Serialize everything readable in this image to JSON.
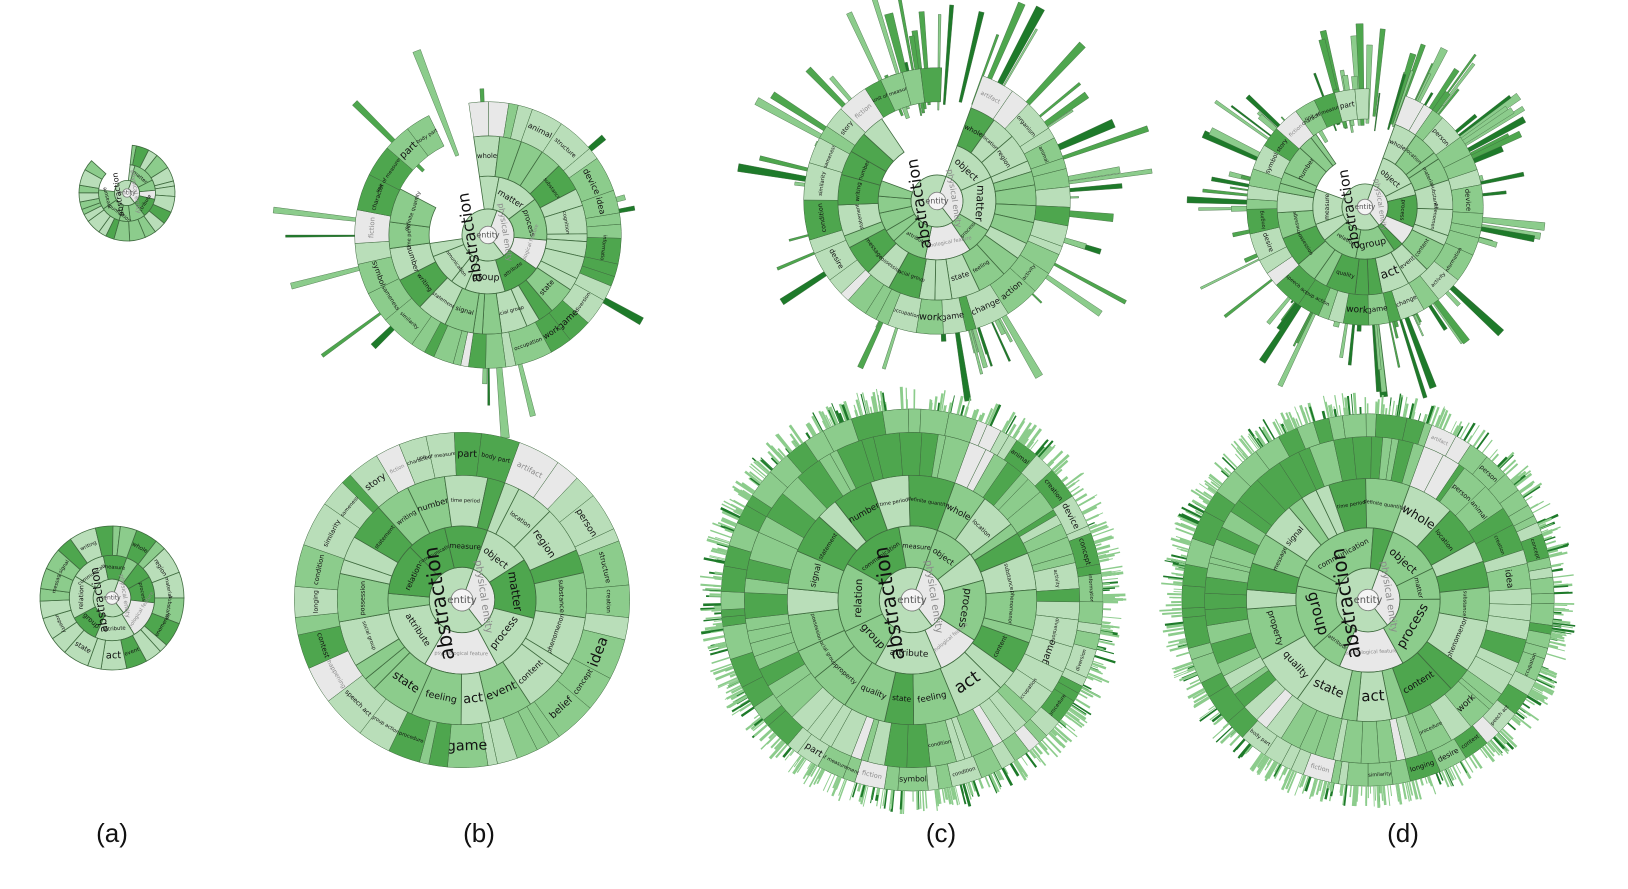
{
  "captions": [
    "(a)",
    "(b)",
    "(c)",
    "(d)"
  ],
  "colors": {
    "green_light": "#b9deb9",
    "green_mid": "#8ccc8c",
    "green_dark": "#4ea64e",
    "green_deep": "#1e7a2a",
    "gray": "#e8e8e8",
    "stroke": "#3f6b3f"
  },
  "labels": {
    "root": "entity",
    "l1": [
      {
        "text": "physical entity",
        "muted": true
      },
      {
        "text": "abstraction",
        "muted": false
      }
    ],
    "l2": [
      {
        "text": "object",
        "muted": false
      },
      {
        "text": "matter",
        "muted": false
      },
      {
        "text": "process",
        "muted": false
      },
      {
        "text": "psychological feature",
        "muted": true
      },
      {
        "text": "attribute",
        "muted": false
      },
      {
        "text": "group",
        "muted": false
      },
      {
        "text": "relation",
        "muted": false
      },
      {
        "text": "communication",
        "muted": false
      },
      {
        "text": "measure",
        "muted": false
      }
    ],
    "l3": [
      {
        "text": "whole",
        "muted": false
      },
      {
        "text": "location",
        "muted": false
      },
      {
        "text": "region",
        "muted": false
      },
      {
        "text": "material",
        "muted": false
      },
      {
        "text": "substance",
        "muted": false
      },
      {
        "text": "phenomenon",
        "muted": false
      },
      {
        "text": "cognition",
        "muted": false
      },
      {
        "text": "content",
        "muted": false
      },
      {
        "text": "event",
        "muted": false
      },
      {
        "text": "act",
        "muted": false
      },
      {
        "text": "feeling",
        "muted": false
      },
      {
        "text": "state",
        "muted": false
      },
      {
        "text": "quality",
        "muted": false
      },
      {
        "text": "property",
        "muted": false
      },
      {
        "text": "social group",
        "muted": false
      },
      {
        "text": "possession",
        "muted": false
      },
      {
        "text": "message",
        "muted": false
      },
      {
        "text": "signal",
        "muted": false
      },
      {
        "text": "statement",
        "muted": false
      },
      {
        "text": "writing",
        "muted": false
      },
      {
        "text": "number",
        "muted": false
      },
      {
        "text": "time period",
        "muted": false
      },
      {
        "text": "definite quantity",
        "muted": false
      }
    ],
    "l4": [
      {
        "text": "artifact",
        "muted": true
      },
      {
        "text": "living thing",
        "muted": true
      },
      {
        "text": "organism",
        "muted": false
      },
      {
        "text": "person",
        "muted": false
      },
      {
        "text": "animal",
        "muted": false
      },
      {
        "text": "structure",
        "muted": false
      },
      {
        "text": "creation",
        "muted": false
      },
      {
        "text": "device",
        "muted": false
      },
      {
        "text": "idea",
        "muted": false
      },
      {
        "text": "concept",
        "muted": false
      },
      {
        "text": "belief",
        "muted": false
      },
      {
        "text": "information",
        "muted": false
      },
      {
        "text": "activity",
        "muted": false
      },
      {
        "text": "action",
        "muted": false
      },
      {
        "text": "change",
        "muted": false
      },
      {
        "text": "diversion",
        "muted": false
      },
      {
        "text": "game",
        "muted": false
      },
      {
        "text": "work",
        "muted": false
      },
      {
        "text": "occupation",
        "muted": false
      },
      {
        "text": "procedure",
        "muted": false
      },
      {
        "text": "group action",
        "muted": false
      },
      {
        "text": "speech act",
        "muted": false
      },
      {
        "text": "happening",
        "muted": true
      },
      {
        "text": "contest",
        "muted": false
      },
      {
        "text": "desire",
        "muted": false
      },
      {
        "text": "longing",
        "muted": false
      },
      {
        "text": "condition",
        "muted": false
      },
      {
        "text": "similarity",
        "muted": false
      },
      {
        "text": "sameness",
        "muted": false
      },
      {
        "text": "symbol",
        "muted": false
      },
      {
        "text": "story",
        "muted": false
      },
      {
        "text": "fiction",
        "muted": true
      },
      {
        "text": "character",
        "muted": false
      },
      {
        "text": "unit of measurement",
        "muted": false
      },
      {
        "text": "part",
        "muted": false
      },
      {
        "text": "body part",
        "muted": false
      }
    ]
  }
}
